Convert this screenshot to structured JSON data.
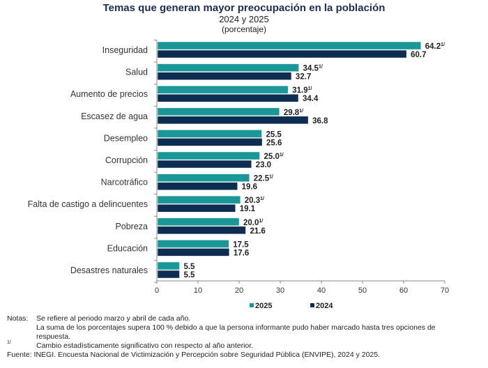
{
  "chart_data": {
    "type": "bar",
    "orientation": "horizontal",
    "title": "Temas que generan mayor preocupación en la población",
    "subtitle": "2024 y 2025",
    "unit": "(porcentaje)",
    "categories": [
      "Inseguridad",
      "Salud",
      "Aumento de precios",
      "Escasez de agua",
      "Desempleo",
      "Corrupción",
      "Narcotráfico",
      "Falta de castigo a delincuentes",
      "Pobreza",
      "Educación",
      "Desastres naturales"
    ],
    "series": [
      {
        "name": "2025",
        "color": "#1a9898",
        "values": [
          64.2,
          34.5,
          31.9,
          29.8,
          25.5,
          25.0,
          22.5,
          20.3,
          20.0,
          17.5,
          5.5
        ],
        "significant": [
          true,
          true,
          true,
          true,
          false,
          true,
          true,
          true,
          true,
          false,
          false
        ]
      },
      {
        "name": "2024",
        "color": "#0d2d52",
        "values": [
          60.7,
          32.7,
          34.4,
          36.8,
          25.6,
          23.0,
          19.6,
          19.1,
          21.6,
          17.6,
          5.5
        ]
      }
    ],
    "xlim": [
      0,
      70
    ],
    "xticks": [
      0,
      10,
      20,
      30,
      40,
      50,
      60,
      70
    ],
    "significance_mark": "1/",
    "legend_position": "bottom",
    "grid": false
  },
  "notes": {
    "label": "Notas:",
    "line1": "Se refiere al periodo marzo y abril de cada año.",
    "line2": "La suma de los porcentajes supera 100 % debido a que la persona informante pudo haber marcado hasta tres opciones de",
    "line3": "respuesta.",
    "mark": "1/",
    "line4": "Cambio estadísticamente significativo con respecto al año anterior.",
    "source_label": "Fuente:",
    "source": "INEGI. Encuesta Nacional de Victimización y Percepción sobre Seguridad Pública (ENVIPE), 2024 y 2025."
  }
}
